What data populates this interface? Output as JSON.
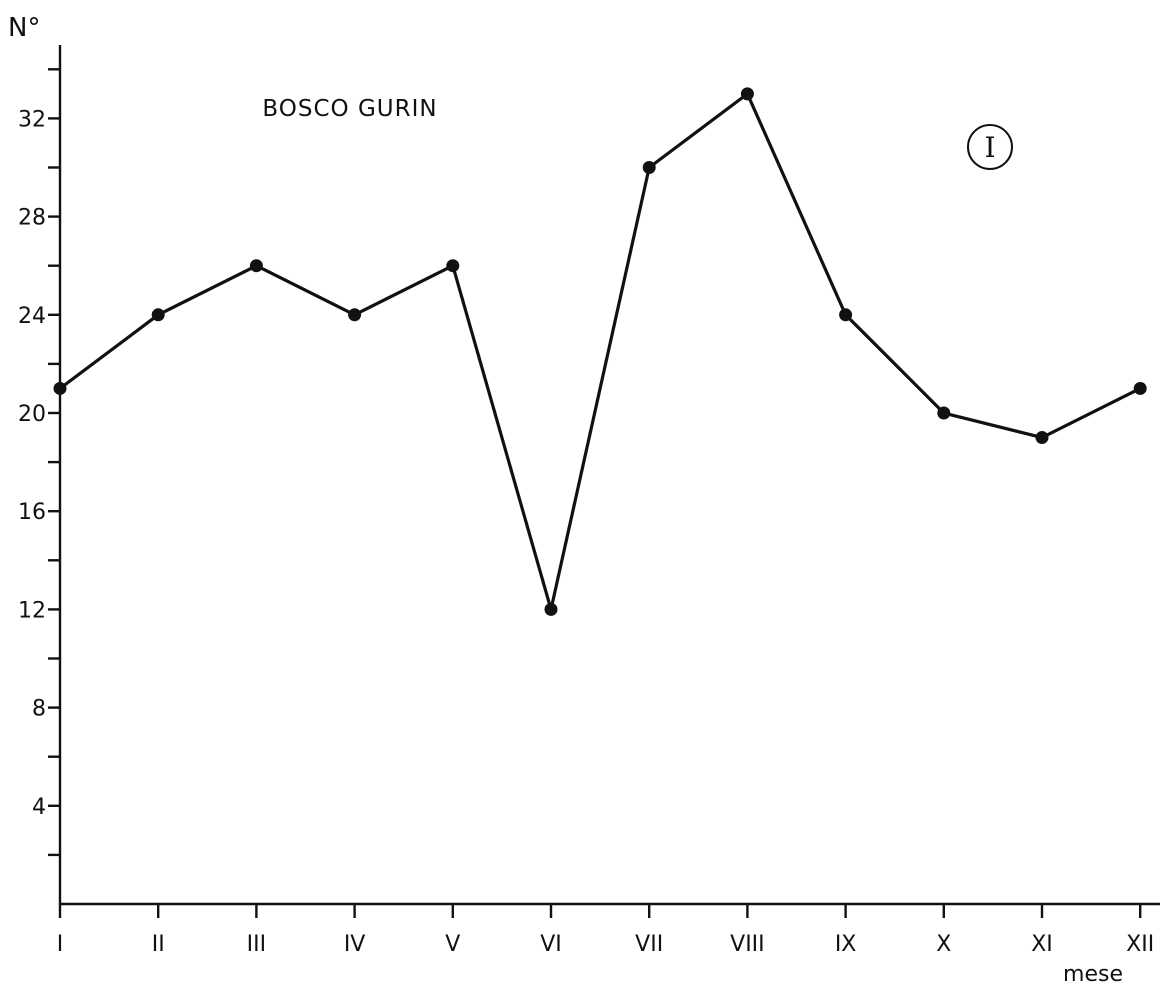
{
  "chart_data": {
    "type": "line",
    "title": "BOSCO GURIN",
    "xlabel": "mese",
    "ylabel": "N°",
    "badge": "I",
    "categories": [
      "I",
      "II",
      "III",
      "IV",
      "V",
      "VI",
      "VII",
      "VIII",
      "IX",
      "X",
      "XI",
      "XII"
    ],
    "series": [
      {
        "values": [
          21,
          24,
          26,
          24,
          26,
          12,
          30,
          33,
          24,
          20,
          19,
          21
        ]
      }
    ],
    "ylim": [
      0,
      35
    ],
    "yticks_labeled": [
      4,
      8,
      12,
      16,
      20,
      24,
      28,
      32
    ],
    "yticks_minor_step": 2,
    "grid": false,
    "legend": "none"
  }
}
